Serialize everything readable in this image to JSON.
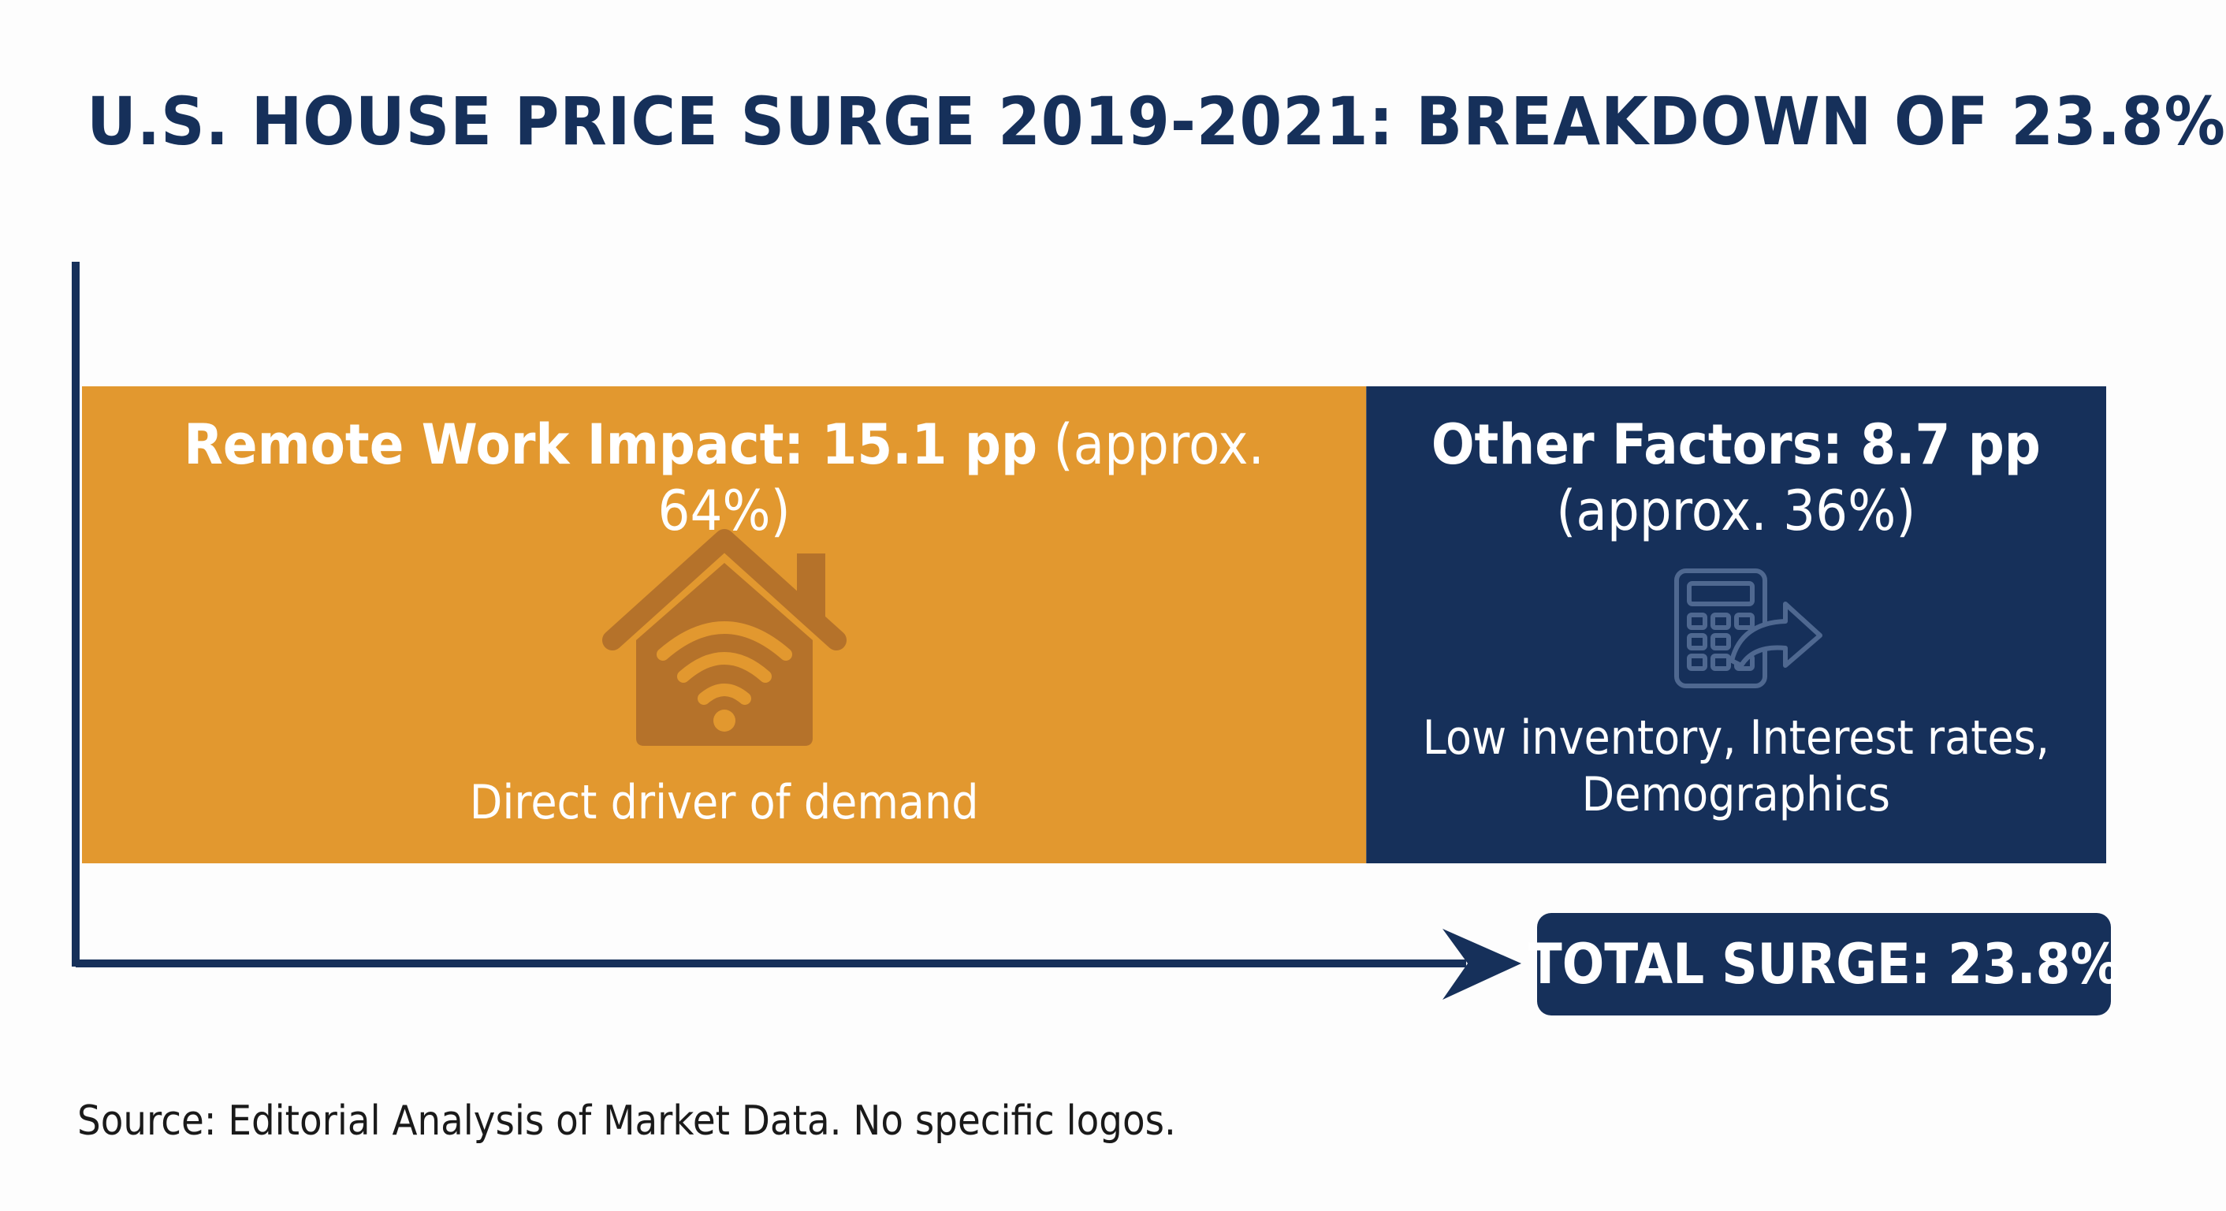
{
  "title": "U.S. HOUSE PRICE SURGE 2019-2021: BREAKDOWN OF 23.8%",
  "source": "Source: Editorial Analysis of Market Data. No specific logos.",
  "total_label": "TOTAL SURGE: 23.8%",
  "colors": {
    "remote": "#e2982f",
    "other": "#16305a",
    "axis": "#16305a",
    "title": "#16305a"
  },
  "icons": {
    "remote": "house-wifi-icon",
    "other": "calculator-arrow-icon"
  },
  "segments": [
    {
      "key": "remote",
      "label_bold": "Remote Work Impact: 15.1 pp",
      "label_approx": "(approx. 64%)",
      "description": "Direct driver of demand"
    },
    {
      "key": "other",
      "label_bold": "Other Factors: 8.7 pp",
      "label_approx": "(approx. 36%)",
      "description_lines": [
        "Low inventory, Interest rates,",
        "Demographics"
      ]
    }
  ],
  "chart_data": {
    "type": "bar",
    "stacked": true,
    "orientation": "horizontal",
    "title": "U.S. HOUSE PRICE SURGE 2019-2021: BREAKDOWN OF 23.8%",
    "unit": "pp",
    "total": 23.8,
    "series": [
      {
        "name": "Remote Work Impact",
        "value": 15.1,
        "share_percent": 64
      },
      {
        "name": "Other Factors",
        "value": 8.7,
        "share_percent": 36
      }
    ],
    "grid": false
  }
}
